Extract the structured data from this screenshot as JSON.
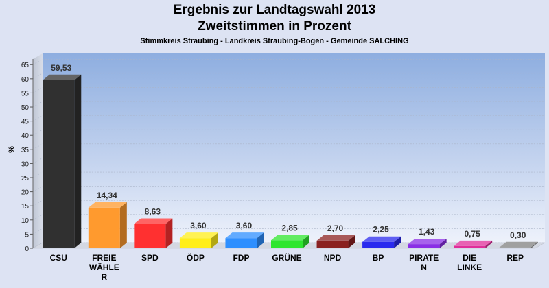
{
  "header": {
    "title_line1": "Ergebnis zur Landtagswahl 2013",
    "title_line2": "Zweitstimmen in Prozent",
    "subtitle": "Stimmkreis Straubing - Landkreis Straubing-Bogen - Gemeinde SALCHING"
  },
  "chart_data": {
    "type": "bar",
    "title": "Ergebnis zur Landtagswahl 2013 Zweitstimmen in Prozent",
    "subtitle": "Stimmkreis Straubing - Landkreis Straubing-Bogen - Gemeinde SALCHING",
    "ylabel": "%",
    "xlabel": "",
    "ylim": [
      0,
      67
    ],
    "yticks": [
      0,
      5,
      10,
      15,
      20,
      25,
      30,
      35,
      40,
      45,
      50,
      55,
      60,
      65
    ],
    "grid": true,
    "categories": [
      [
        "CSU"
      ],
      [
        "FREIE",
        "WÄHLE",
        "R"
      ],
      [
        "SPD"
      ],
      [
        "ÖDP"
      ],
      [
        "FDP"
      ],
      [
        "GRÜNE"
      ],
      [
        "NPD"
      ],
      [
        "BP"
      ],
      [
        "PIRATE",
        "N"
      ],
      [
        "DIE",
        "LINKE"
      ],
      [
        "REP"
      ]
    ],
    "values": [
      59.53,
      14.34,
      8.63,
      3.6,
      3.6,
      2.85,
      2.7,
      2.25,
      1.43,
      0.75,
      0.3
    ],
    "value_labels": [
      "59,53",
      "14,34",
      "8,63",
      "3,60",
      "3,60",
      "2,85",
      "2,70",
      "2,25",
      "1,43",
      "0,75",
      "0,30"
    ],
    "colors": [
      "#303030",
      "#ff9a2e",
      "#ff3030",
      "#ffee1a",
      "#2e8fff",
      "#2ee62e",
      "#8a2020",
      "#2a2aee",
      "#8a2ee6",
      "#e02e9a",
      "#808080"
    ]
  }
}
